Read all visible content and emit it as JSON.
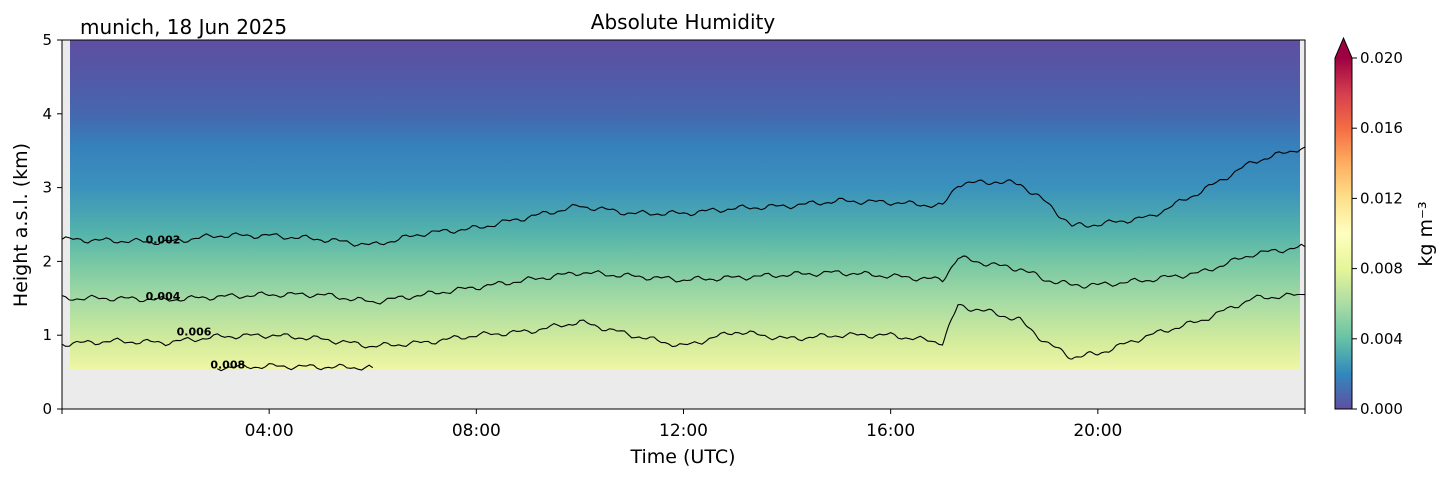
{
  "chart_data": {
    "type": "heatmap",
    "title": "Absolute Humidity",
    "location_label": "munich, 18 Jun 2025",
    "xlabel": "Time (UTC)",
    "ylabel": "Height a.s.l. (km)",
    "x_tick_labels": [
      "04:00",
      "08:00",
      "12:00",
      "16:00",
      "20:00"
    ],
    "x_ticks_hours": [
      4,
      8,
      12,
      16,
      20
    ],
    "xlim_hours": [
      0,
      24
    ],
    "y_tick_labels": [
      "0",
      "1",
      "2",
      "3",
      "4",
      "5"
    ],
    "ylim_km": [
      0,
      5
    ],
    "data_bottom_km": 0.55,
    "colorbar": {
      "label": "kg m⁻³",
      "range": [
        0.0,
        0.02
      ],
      "tick_labels": [
        "0.000",
        "0.004",
        "0.008",
        "0.012",
        "0.016",
        "0.020"
      ],
      "extend": "max",
      "colormap": "Spectral_r"
    },
    "contours": [
      {
        "level": "0.002",
        "x_hours": [
          0,
          1,
          2,
          3,
          4,
          5,
          6,
          7,
          8,
          9,
          10,
          11,
          12,
          13,
          14,
          15,
          16,
          17,
          17.3,
          18,
          18.5,
          19,
          19.5,
          20,
          21,
          22,
          23,
          24
        ],
        "y_km": [
          2.3,
          2.28,
          2.26,
          2.35,
          2.35,
          2.3,
          2.22,
          2.38,
          2.45,
          2.6,
          2.75,
          2.65,
          2.65,
          2.72,
          2.75,
          2.82,
          2.8,
          2.75,
          3.05,
          3.08,
          3.05,
          2.8,
          2.48,
          2.5,
          2.6,
          2.95,
          3.35,
          3.55
        ]
      },
      {
        "level": "0.004",
        "x_hours": [
          0,
          1,
          2,
          3,
          4,
          5,
          6,
          7,
          8,
          9,
          10,
          11,
          12,
          13,
          14,
          15,
          16,
          17,
          17.3,
          18,
          18.5,
          19,
          19.5,
          20,
          21,
          22,
          23,
          24
        ],
        "y_km": [
          1.5,
          1.5,
          1.48,
          1.52,
          1.55,
          1.55,
          1.45,
          1.55,
          1.65,
          1.75,
          1.85,
          1.8,
          1.75,
          1.78,
          1.82,
          1.85,
          1.8,
          1.75,
          2.05,
          1.95,
          1.9,
          1.75,
          1.68,
          1.68,
          1.75,
          1.85,
          2.1,
          2.2
        ]
      },
      {
        "level": "0.006",
        "x_hours": [
          0,
          1,
          2,
          3,
          4,
          5,
          6,
          7,
          8,
          9,
          10,
          11,
          12,
          13,
          14,
          15,
          16,
          17,
          17.3,
          18,
          18.5,
          19,
          19.5,
          20,
          21,
          22,
          23,
          24
        ],
        "y_km": [
          0.88,
          0.92,
          0.9,
          0.98,
          1.0,
          0.95,
          0.85,
          0.9,
          1.0,
          1.05,
          1.18,
          1.0,
          0.85,
          1.05,
          0.95,
          1.0,
          1.0,
          0.9,
          1.4,
          1.3,
          1.2,
          0.9,
          0.7,
          0.75,
          1.0,
          1.2,
          1.5,
          1.55
        ]
      },
      {
        "level": "0.008",
        "x_hours": [
          3,
          4,
          5,
          6
        ],
        "y_km": [
          0.56,
          0.58,
          0.57,
          0.56
        ]
      }
    ],
    "contour_labels": [
      {
        "text": "0.002",
        "x_hours": 1.95,
        "y_km": 2.3
      },
      {
        "text": "0.004",
        "x_hours": 1.95,
        "y_km": 1.53
      },
      {
        "text": "0.006",
        "x_hours": 2.55,
        "y_km": 1.05
      },
      {
        "text": "0.008",
        "x_hours": 3.2,
        "y_km": 0.6
      }
    ]
  }
}
